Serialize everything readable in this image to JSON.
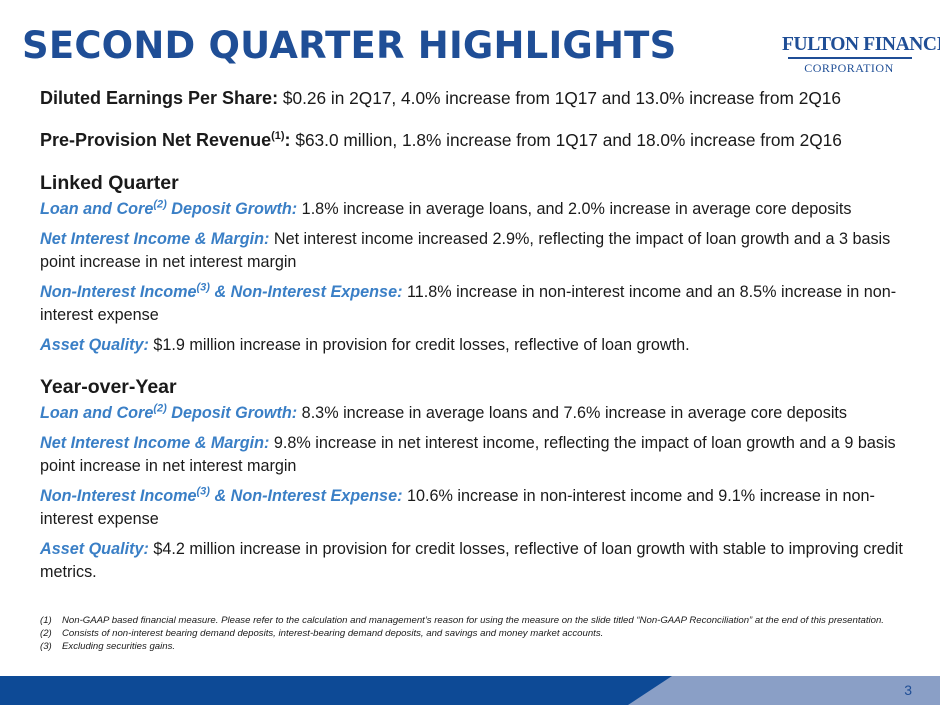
{
  "title": "SECOND QUARTER HIGHLIGHTS",
  "logo": {
    "line1": "FULTON FINANCIAL",
    "line2": "CORPORATION"
  },
  "eps": {
    "label": "Diluted Earnings Per Share:",
    "text": " $0.26 in 2Q17, 4.0% increase from 1Q17 and 13.0% increase from 2Q16"
  },
  "ppnr": {
    "label_main": "Pre-Provision Net Revenue",
    "label_sup": "(1)",
    "label_tail": ":",
    "text": " $63.0 million, 1.8% increase from 1Q17 and 18.0% increase from 2Q16"
  },
  "linked_quarter": {
    "heading": "Linked Quarter",
    "loan_deposit": {
      "k1": "Loan and Core",
      "sup": "(2)",
      "k2": " Deposit Growth:",
      "text": " 1.8% increase in average loans, and 2.0% increase in average core deposits"
    },
    "nii": {
      "k": "Net Interest Income & Margin:",
      "text": " Net interest income increased 2.9%, reflecting the impact of loan growth and a 3 basis point increase in net interest margin"
    },
    "nonint": {
      "k1": "Non-Interest Income",
      "sup": "(3)",
      "k2": " & Non-Interest Expense:",
      "text": " 11.8% increase in non-interest income and an 8.5% increase in non-interest expense"
    },
    "asset": {
      "k": "Asset Quality:",
      "text": " $1.9 million increase in provision for credit losses, reflective of loan growth."
    }
  },
  "year_over_year": {
    "heading": "Year-over-Year",
    "loan_deposit": {
      "k1": "Loan and Core",
      "sup": "(2)",
      "k2": " Deposit Growth:",
      "text": " 8.3% increase in average loans and 7.6% increase in average core deposits"
    },
    "nii": {
      "k": "Net Interest Income & Margin:",
      "text": " 9.8% increase in net interest income, reflecting the impact of loan growth and a 9 basis point increase in net interest margin"
    },
    "nonint": {
      "k1": "Non-Interest Income",
      "sup": "(3)",
      "k2": " & Non-Interest Expense:",
      "text": " 10.6% increase in non-interest income and 9.1% increase in non-interest expense"
    },
    "asset": {
      "k": "Asset Quality:",
      "text": " $4.2 million increase in provision for credit losses, reflective of loan growth with stable to improving credit metrics."
    }
  },
  "footnotes": [
    {
      "num": "(1)",
      "text": "Non-GAAP based financial measure.  Please refer to the calculation and management’s reason for using the measure on the slide titled “Non-GAAP Reconciliation” at the end of this presentation."
    },
    {
      "num": "(2)",
      "text": "Consists of non-interest bearing demand deposits, interest-bearing demand deposits, and savings and money market accounts."
    },
    {
      "num": "(3)",
      "text": "Excluding securities gains."
    }
  ],
  "page_number": "3",
  "colors": {
    "brand_blue": "#1f4e96",
    "accent_blue": "#3a7fc6",
    "bar_dark": "#0d4a96",
    "bar_light": "#8a9fc6"
  }
}
